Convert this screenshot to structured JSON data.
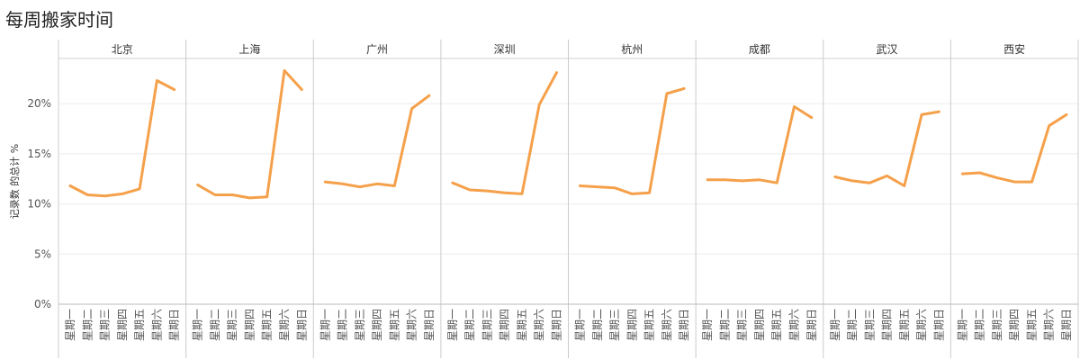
{
  "chart_data": {
    "type": "line",
    "title": "每周搬家时间",
    "ylabel": "记录数 的总计 %",
    "xlabel": "",
    "ylim": [
      0,
      24.5
    ],
    "yticks": [
      "0%",
      "5%",
      "10%",
      "15%",
      "20%"
    ],
    "ytick_values": [
      0,
      5,
      10,
      15,
      20
    ],
    "x": [
      "星期一",
      "星期二",
      "星期三",
      "星期四",
      "星期五",
      "星期六",
      "星期日"
    ],
    "line_color": "#F5A04A",
    "grid": true,
    "panels": [
      {
        "name": "北京",
        "values": [
          11.8,
          10.9,
          10.8,
          11.0,
          11.5,
          22.3,
          21.4
        ]
      },
      {
        "name": "上海",
        "values": [
          11.9,
          10.9,
          10.9,
          10.6,
          10.7,
          23.3,
          21.4
        ]
      },
      {
        "name": "广州",
        "values": [
          12.2,
          12.0,
          11.7,
          12.0,
          11.8,
          19.5,
          20.8
        ]
      },
      {
        "name": "深圳",
        "values": [
          12.1,
          11.4,
          11.3,
          11.1,
          11.0,
          19.9,
          23.1
        ]
      },
      {
        "name": "杭州",
        "values": [
          11.8,
          11.7,
          11.6,
          11.0,
          11.1,
          21.0,
          21.5
        ]
      },
      {
        "name": "成都",
        "values": [
          12.4,
          12.4,
          12.3,
          12.4,
          12.1,
          19.7,
          18.6
        ]
      },
      {
        "name": "武汉",
        "values": [
          12.7,
          12.3,
          12.1,
          12.8,
          11.8,
          18.9,
          19.2
        ]
      },
      {
        "name": "西安",
        "values": [
          13.0,
          13.1,
          12.6,
          12.2,
          12.2,
          17.8,
          18.9
        ]
      }
    ]
  }
}
